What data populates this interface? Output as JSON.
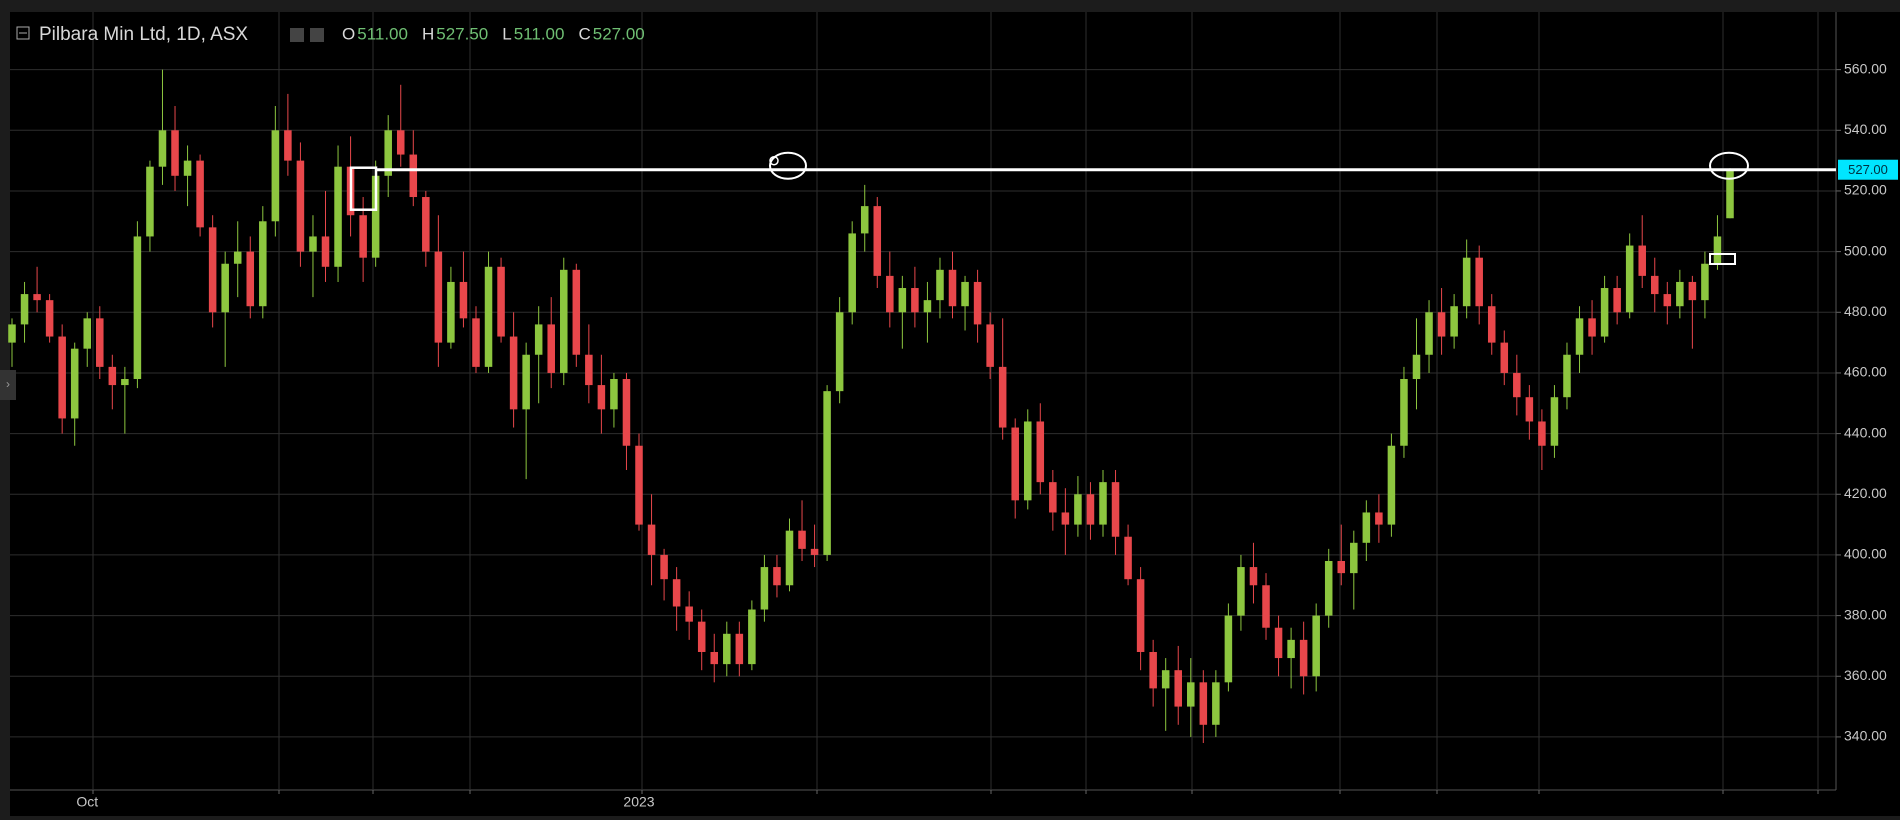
{
  "chart_data": {
    "type": "candlestick",
    "title": "Pilbara Min Ltd, 1D, ASX",
    "legend": [
      {
        "key": "O",
        "value": "511.00"
      },
      {
        "key": "H",
        "value": "527.50"
      },
      {
        "key": "L",
        "value": "511.00"
      },
      {
        "key": "C",
        "value": "527.00"
      }
    ],
    "up_color": "#8dc63f",
    "down_color": "#e8474b",
    "grid": true,
    "ylim": [
      322.5,
      579
    ],
    "yticks": [
      {
        "value": 340,
        "label": "340.00"
      },
      {
        "value": 360,
        "label": "360.00"
      },
      {
        "value": 380,
        "label": "380.00"
      },
      {
        "value": 400,
        "label": "400.00"
      },
      {
        "value": 420,
        "label": "420.00"
      },
      {
        "value": 440,
        "label": "440.00"
      },
      {
        "value": 460,
        "label": "460.00"
      },
      {
        "value": 480,
        "label": "480.00"
      },
      {
        "value": 500,
        "label": "500.00"
      },
      {
        "value": 520,
        "label": "520.00"
      },
      {
        "value": 540,
        "label": "540.00"
      },
      {
        "value": 560,
        "label": "560.00"
      }
    ],
    "hline": {
      "value": 527,
      "label": "527.00"
    },
    "categories": [
      null,
      null,
      null,
      null,
      null,
      null,
      "Oct",
      null,
      null,
      null,
      null,
      null,
      null,
      null,
      null,
      null,
      null,
      null,
      null,
      null,
      null,
      null,
      null,
      null,
      null,
      null,
      null,
      null,
      null,
      null,
      null,
      null,
      null,
      null,
      null,
      null,
      null,
      null,
      null,
      null,
      null,
      null,
      null,
      null,
      null,
      null,
      null,
      null,
      null,
      null,
      "2023",
      null,
      null,
      null,
      null,
      null,
      null,
      null,
      null,
      null,
      null,
      null,
      null,
      null,
      null,
      null,
      null,
      null,
      null,
      null,
      null,
      null,
      null,
      null,
      null,
      null,
      null,
      null,
      null,
      null,
      null,
      null,
      null,
      null,
      null,
      null,
      null,
      null,
      null,
      null,
      null,
      null,
      null,
      null,
      null,
      null,
      null,
      null,
      null,
      null,
      null,
      null,
      null,
      null,
      null,
      null,
      null,
      null,
      null,
      null,
      null,
      null,
      null,
      null,
      null,
      null,
      null,
      null,
      null,
      null,
      null,
      null,
      null,
      null,
      null,
      null,
      null,
      null,
      null,
      null,
      null,
      null,
      null,
      null,
      null,
      null,
      null,
      null
    ],
    "ohlc": [
      [
        470,
        478,
        462,
        476
      ],
      [
        476,
        490,
        470,
        486
      ],
      [
        486,
        495,
        480,
        484
      ],
      [
        484,
        486,
        470,
        472
      ],
      [
        472,
        476,
        440,
        445
      ],
      [
        445,
        470,
        436,
        468
      ],
      [
        468,
        480,
        462,
        478
      ],
      [
        478,
        482,
        458,
        462
      ],
      [
        462,
        466,
        448,
        456
      ],
      [
        456,
        462,
        440,
        458
      ],
      [
        458,
        510,
        455,
        505
      ],
      [
        505,
        530,
        500,
        528
      ],
      [
        528,
        560,
        522,
        540
      ],
      [
        540,
        548,
        520,
        525
      ],
      [
        525,
        535,
        515,
        530
      ],
      [
        530,
        532,
        505,
        508
      ],
      [
        508,
        512,
        475,
        480
      ],
      [
        480,
        500,
        462,
        496
      ],
      [
        496,
        510,
        485,
        500
      ],
      [
        500,
        505,
        478,
        482
      ],
      [
        482,
        515,
        478,
        510
      ],
      [
        510,
        548,
        505,
        540
      ],
      [
        540,
        552,
        525,
        530
      ],
      [
        530,
        536,
        495,
        500
      ],
      [
        500,
        512,
        485,
        505
      ],
      [
        505,
        520,
        490,
        495
      ],
      [
        495,
        535,
        490,
        528
      ],
      [
        528,
        538,
        505,
        512
      ],
      [
        512,
        518,
        490,
        498
      ],
      [
        498,
        530,
        495,
        525
      ],
      [
        525,
        545,
        518,
        540
      ],
      [
        540,
        555,
        528,
        532
      ],
      [
        532,
        540,
        515,
        518
      ],
      [
        518,
        520,
        495,
        500
      ],
      [
        500,
        512,
        462,
        470
      ],
      [
        470,
        495,
        468,
        490
      ],
      [
        490,
        500,
        475,
        478
      ],
      [
        478,
        482,
        460,
        462
      ],
      [
        462,
        500,
        460,
        495
      ],
      [
        495,
        498,
        470,
        472
      ],
      [
        472,
        480,
        442,
        448
      ],
      [
        448,
        470,
        425,
        466
      ],
      [
        466,
        482,
        450,
        476
      ],
      [
        476,
        485,
        455,
        460
      ],
      [
        460,
        498,
        456,
        494
      ],
      [
        494,
        496,
        462,
        466
      ],
      [
        466,
        476,
        450,
        456
      ],
      [
        456,
        466,
        440,
        448
      ],
      [
        448,
        460,
        442,
        458
      ],
      [
        458,
        460,
        428,
        436
      ],
      [
        436,
        440,
        408,
        410
      ],
      [
        410,
        420,
        390,
        400
      ],
      [
        400,
        402,
        385,
        392
      ],
      [
        392,
        396,
        375,
        383
      ],
      [
        383,
        388,
        372,
        378
      ],
      [
        378,
        382,
        362,
        368
      ],
      [
        368,
        374,
        358,
        364
      ],
      [
        364,
        378,
        360,
        374
      ],
      [
        374,
        378,
        360,
        364
      ],
      [
        364,
        385,
        362,
        382
      ],
      [
        382,
        400,
        378,
        396
      ],
      [
        396,
        400,
        386,
        390
      ],
      [
        390,
        412,
        388,
        408
      ],
      [
        408,
        418,
        398,
        402
      ],
      [
        402,
        410,
        396,
        400
      ],
      [
        400,
        456,
        398,
        454
      ],
      [
        454,
        485,
        450,
        480
      ],
      [
        480,
        510,
        476,
        506
      ],
      [
        506,
        522,
        500,
        515
      ],
      [
        515,
        518,
        488,
        492
      ],
      [
        492,
        500,
        475,
        480
      ],
      [
        480,
        492,
        468,
        488
      ],
      [
        488,
        495,
        475,
        480
      ],
      [
        480,
        490,
        470,
        484
      ],
      [
        484,
        498,
        478,
        494
      ],
      [
        494,
        500,
        478,
        482
      ],
      [
        482,
        492,
        474,
        490
      ],
      [
        490,
        494,
        470,
        476
      ],
      [
        476,
        480,
        458,
        462
      ],
      [
        462,
        478,
        438,
        442
      ],
      [
        442,
        445,
        412,
        418
      ],
      [
        418,
        448,
        415,
        444
      ],
      [
        444,
        450,
        420,
        424
      ],
      [
        424,
        428,
        408,
        414
      ],
      [
        414,
        422,
        400,
        410
      ],
      [
        410,
        426,
        406,
        420
      ],
      [
        420,
        424,
        405,
        410
      ],
      [
        410,
        428,
        406,
        424
      ],
      [
        424,
        428,
        400,
        406
      ],
      [
        406,
        410,
        390,
        392
      ],
      [
        392,
        396,
        362,
        368
      ],
      [
        368,
        372,
        350,
        356
      ],
      [
        356,
        366,
        342,
        362
      ],
      [
        362,
        370,
        344,
        350
      ],
      [
        350,
        366,
        340,
        358
      ],
      [
        358,
        362,
        338,
        344
      ],
      [
        344,
        362,
        340,
        358
      ],
      [
        358,
        384,
        355,
        380
      ],
      [
        380,
        400,
        375,
        396
      ],
      [
        396,
        404,
        384,
        390
      ],
      [
        390,
        394,
        372,
        376
      ],
      [
        376,
        380,
        360,
        366
      ],
      [
        366,
        376,
        356,
        372
      ],
      [
        372,
        378,
        354,
        360
      ],
      [
        360,
        384,
        355,
        380
      ],
      [
        380,
        402,
        376,
        398
      ],
      [
        398,
        410,
        390,
        394
      ],
      [
        394,
        408,
        382,
        404
      ],
      [
        404,
        418,
        398,
        414
      ],
      [
        414,
        420,
        404,
        410
      ],
      [
        410,
        440,
        406,
        436
      ],
      [
        436,
        462,
        432,
        458
      ],
      [
        458,
        478,
        448,
        466
      ],
      [
        466,
        484,
        460,
        480
      ],
      [
        480,
        488,
        466,
        472
      ],
      [
        472,
        486,
        468,
        482
      ],
      [
        482,
        504,
        478,
        498
      ],
      [
        498,
        502,
        476,
        482
      ],
      [
        482,
        486,
        466,
        470
      ],
      [
        470,
        474,
        456,
        460
      ],
      [
        460,
        466,
        446,
        452
      ],
      [
        452,
        456,
        438,
        444
      ],
      [
        444,
        448,
        428,
        436
      ],
      [
        436,
        456,
        432,
        452
      ],
      [
        452,
        470,
        448,
        466
      ],
      [
        466,
        482,
        460,
        478
      ],
      [
        478,
        484,
        466,
        472
      ],
      [
        472,
        492,
        470,
        488
      ],
      [
        488,
        492,
        476,
        480
      ],
      [
        480,
        506,
        478,
        502
      ],
      [
        502,
        512,
        488,
        492
      ],
      [
        492,
        498,
        480,
        486
      ],
      [
        486,
        490,
        476,
        482
      ],
      [
        482,
        494,
        478,
        490
      ],
      [
        490,
        492,
        468,
        484
      ],
      [
        484,
        500,
        478,
        496
      ],
      [
        496,
        512,
        494,
        505
      ],
      [
        511,
        527.5,
        511,
        527
      ]
    ]
  }
}
